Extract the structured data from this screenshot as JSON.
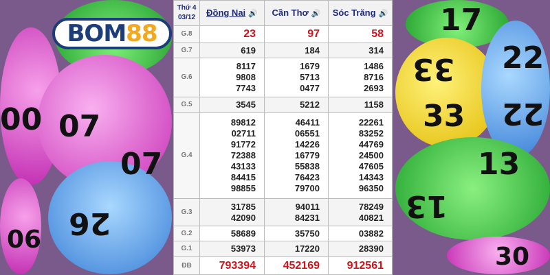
{
  "logo": {
    "text_a": "BOM",
    "text_b": "88"
  },
  "header": {
    "day": "Thứ 4",
    "date": "03/12",
    "provinces": [
      "Đồng Nai",
      "Cần Thơ",
      "Sóc Trăng"
    ]
  },
  "rows": [
    {
      "label": "G.8",
      "values": [
        [
          "23"
        ],
        [
          "97"
        ],
        [
          "58"
        ]
      ]
    },
    {
      "label": "G.7",
      "values": [
        [
          "619"
        ],
        [
          "184"
        ],
        [
          "314"
        ]
      ]
    },
    {
      "label": "G.6",
      "values": [
        [
          "8117",
          "9808",
          "7743"
        ],
        [
          "1679",
          "5713",
          "0477"
        ],
        [
          "1486",
          "8716",
          "2693"
        ]
      ]
    },
    {
      "label": "G.5",
      "values": [
        [
          "3545"
        ],
        [
          "5212"
        ],
        [
          "1158"
        ]
      ]
    },
    {
      "label": "G.4",
      "values": [
        [
          "89812",
          "02711",
          "91772",
          "72388",
          "43133",
          "84415",
          "98855"
        ],
        [
          "46411",
          "06551",
          "14226",
          "16779",
          "55838",
          "76423",
          "79700"
        ],
        [
          "22261",
          "83252",
          "44769",
          "24500",
          "47605",
          "14343",
          "96350"
        ]
      ]
    },
    {
      "label": "G.3",
      "values": [
        [
          "31785",
          "42090"
        ],
        [
          "94011",
          "84231"
        ],
        [
          "78249",
          "40821"
        ]
      ]
    },
    {
      "label": "G.2",
      "values": [
        [
          "58689"
        ],
        [
          "35750"
        ],
        [
          "03882"
        ]
      ]
    },
    {
      "label": "G.1",
      "values": [
        [
          "53973"
        ],
        [
          "17220"
        ],
        [
          "28390"
        ]
      ]
    },
    {
      "label": "ĐB",
      "values": [
        [
          "793394"
        ],
        [
          "452169"
        ],
        [
          "912561"
        ]
      ]
    }
  ],
  "balls": [
    "00",
    "07",
    "07",
    "26",
    "06",
    "17",
    "33",
    "22",
    "33",
    "22",
    "13",
    "13",
    "30"
  ],
  "colors": {
    "prize_red": "#d0121b",
    "header_blue": "#1f2a7a",
    "brand_blue": "#1d3c7a",
    "brand_yellow": "#f4a81d"
  }
}
